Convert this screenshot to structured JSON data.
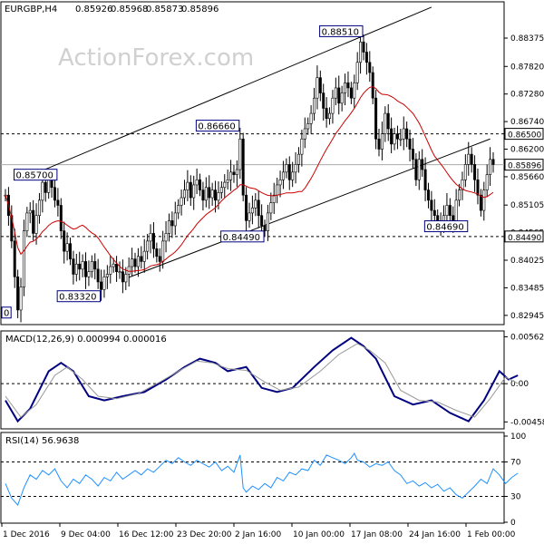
{
  "header": {
    "symbol": "EURGBP,H4",
    "open": "0.85926",
    "high": "0.85968",
    "low": "0.85873",
    "close": "0.85896"
  },
  "watermark": "ActionForex.com",
  "chart_data": [
    {
      "type": "candlestick",
      "title": "EURGBP,H4  0.85926 0.85968 0.85873 0.85896",
      "ylim": [
        0.828,
        0.8905
      ],
      "y_ticks": [
        "0.88375",
        "0.87820",
        "0.87280",
        "0.86740",
        "0.86200",
        "0.85660",
        "0.85105",
        "0.84565",
        "0.84025",
        "0.83485",
        "0.82945"
      ],
      "y_tick_values": [
        0.88375,
        0.8782,
        0.8728,
        0.8674,
        0.862,
        0.8566,
        0.85105,
        0.84565,
        0.84025,
        0.83485,
        0.82945
      ],
      "price_labels": [
        {
          "text": "0.86500",
          "value": 0.865
        },
        {
          "text": "0.85896",
          "value": 0.85896
        },
        {
          "text": "0.84490",
          "value": 0.8449
        }
      ],
      "horizontal_levels": [
        0.865,
        0.8449
      ],
      "current_price": 0.85896,
      "annotations": [
        {
          "text": "0.88510",
          "bar": 116,
          "value": 0.8851
        },
        {
          "text": "0.86660",
          "bar": 76,
          "value": 0.8666
        },
        {
          "text": "0.85700",
          "bar": 17,
          "value": 0.857
        },
        {
          "text": "0.84490",
          "bar": 84,
          "value": 0.8449
        },
        {
          "text": "0.84690",
          "bar": 150,
          "value": 0.8469
        },
        {
          "text": "0.83320",
          "bar": 31,
          "value": 0.8332
        },
        {
          "text": "0",
          "bar": 0,
          "value": 0.83
        }
      ],
      "channel": {
        "upper": [
          {
            "bar": 8,
            "value": 0.8568
          },
          {
            "bar": 138,
            "value": 0.8898
          }
        ],
        "lower": [
          {
            "bar": 40,
            "value": 0.8369
          },
          {
            "bar": 157,
            "value": 0.864
          }
        ]
      },
      "series": [
        {
          "ma_color": "#cc0000",
          "close": [
            0.853,
            0.849,
            0.844,
            0.837,
            0.8305,
            0.835,
            0.846,
            0.8495,
            0.85,
            0.8455,
            0.849,
            0.852,
            0.8555,
            0.8535,
            0.8565,
            0.8545,
            0.852,
            0.851,
            0.846,
            0.842,
            0.8435,
            0.8405,
            0.8375,
            0.8395,
            0.8385,
            0.84,
            0.837,
            0.838,
            0.84,
            0.8385,
            0.836,
            0.8345,
            0.837,
            0.8375,
            0.839,
            0.8395,
            0.838,
            0.838,
            0.836,
            0.8375,
            0.839,
            0.8405,
            0.839,
            0.841,
            0.84,
            0.842,
            0.844,
            0.8455,
            0.8425,
            0.841,
            0.84,
            0.844,
            0.8455,
            0.848,
            0.847,
            0.8495,
            0.851,
            0.8525,
            0.854,
            0.8555,
            0.8525,
            0.855,
            0.856,
            0.854,
            0.852,
            0.8545,
            0.8525,
            0.854,
            0.852,
            0.8535,
            0.8545,
            0.8555,
            0.856,
            0.8575,
            0.857,
            0.858,
            0.864,
            0.853,
            0.848,
            0.8495,
            0.8505,
            0.852,
            0.849,
            0.847,
            0.846,
            0.8495,
            0.8515,
            0.853,
            0.855,
            0.856,
            0.8575,
            0.859,
            0.856,
            0.8575,
            0.859,
            0.861,
            0.864,
            0.866,
            0.867,
            0.869,
            0.872,
            0.876,
            0.873,
            0.87,
            0.868,
            0.869,
            0.872,
            0.874,
            0.871,
            0.873,
            0.875,
            0.874,
            0.872,
            0.875,
            0.879,
            0.883,
            0.881,
            0.879,
            0.877,
            0.872,
            0.864,
            0.862,
            0.865,
            0.869,
            0.866,
            0.863,
            0.865,
            0.864,
            0.864,
            0.866,
            0.864,
            0.862,
            0.86,
            0.856,
            0.86,
            0.858,
            0.854,
            0.852,
            0.85,
            0.849,
            0.848,
            0.847,
            0.849,
            0.851,
            0.849,
            0.848,
            0.852,
            0.854,
            0.856,
            0.859,
            0.861,
            0.859,
            0.856,
            0.853,
            0.85,
            0.854,
            0.857,
            0.86,
            0.859
          ]
        }
      ],
      "x_labels": [
        "1 Dec 2016",
        "9 Dec 04:00",
        "16 Dec 12:00",
        "23 Dec 20:00",
        "2 Jan 16:00",
        "10 Jan 00:00",
        "17 Jan 08:00",
        "24 Jan 16:00",
        "1 Feb 00:00"
      ]
    },
    {
      "type": "line",
      "title": "MACD(12,26,9) 0.000994 0.000016",
      "ylim": [
        -0.0052,
        0.006
      ],
      "y_ticks": [
        "0.005627",
        "0.00",
        "-0.004586"
      ],
      "y_tick_values": [
        0.005627,
        0.0,
        -0.004586
      ],
      "series": [
        {
          "name": "MACD",
          "color": "#000080",
          "points": [
            [
              0,
              -0.002
            ],
            [
              4,
              -0.0045
            ],
            [
              8,
              -0.003
            ],
            [
              14,
              0.0015
            ],
            [
              18,
              0.0025
            ],
            [
              22,
              0.0015
            ],
            [
              27,
              -0.0015
            ],
            [
              32,
              -0.002
            ],
            [
              38,
              -0.0015
            ],
            [
              45,
              -0.001
            ],
            [
              52,
              0.0005
            ],
            [
              58,
              0.002
            ],
            [
              63,
              0.003
            ],
            [
              68,
              0.0025
            ],
            [
              72,
              0.0015
            ],
            [
              78,
              0.002
            ],
            [
              83,
              -0.0005
            ],
            [
              88,
              -0.001
            ],
            [
              93,
              -0.0005
            ],
            [
              100,
              0.002
            ],
            [
              106,
              0.004
            ],
            [
              112,
              0.0055
            ],
            [
              116,
              0.0045
            ],
            [
              120,
              0.003
            ],
            [
              126,
              -0.0015
            ],
            [
              132,
              -0.0025
            ],
            [
              138,
              -0.002
            ],
            [
              144,
              -0.0035
            ],
            [
              150,
              -0.0045
            ],
            [
              155,
              -0.002
            ],
            [
              160,
              0.0015
            ],
            [
              163,
              0.0005
            ],
            [
              166,
              0.001
            ]
          ]
        },
        {
          "name": "Signal",
          "color": "#999999",
          "points": [
            [
              0,
              -0.0015
            ],
            [
              5,
              -0.004
            ],
            [
              10,
              -0.0025
            ],
            [
              16,
              0.001
            ],
            [
              20,
              0.002
            ],
            [
              25,
              0.0005
            ],
            [
              30,
              -0.0015
            ],
            [
              36,
              -0.0018
            ],
            [
              43,
              -0.0012
            ],
            [
              50,
              0.0002
            ],
            [
              56,
              0.0015
            ],
            [
              62,
              0.0027
            ],
            [
              67,
              0.0025
            ],
            [
              72,
              0.0018
            ],
            [
              78,
              0.0016
            ],
            [
              84,
              0.0002
            ],
            [
              89,
              -0.0008
            ],
            [
              95,
              -0.0004
            ],
            [
              102,
              0.0015
            ],
            [
              108,
              0.0035
            ],
            [
              114,
              0.0048
            ],
            [
              118,
              0.004
            ],
            [
              123,
              0.0025
            ],
            [
              128,
              -0.0008
            ],
            [
              134,
              -0.002
            ],
            [
              140,
              -0.0022
            ],
            [
              146,
              -0.0032
            ],
            [
              152,
              -0.004
            ],
            [
              157,
              -0.0018
            ],
            [
              162,
              0.0008
            ],
            [
              166,
              1.6e-05
            ]
          ]
        }
      ]
    },
    {
      "type": "line",
      "title": "RSI(14) 56.9638",
      "ylim": [
        0,
        100
      ],
      "y_ticks": [
        "100",
        "70",
        "30",
        "0"
      ],
      "y_tick_values": [
        100,
        70,
        30,
        0
      ],
      "series": [
        {
          "name": "RSI",
          "color": "#1e90ff",
          "points": [
            [
              0,
              45
            ],
            [
              2,
              28
            ],
            [
              4,
              20
            ],
            [
              6,
              40
            ],
            [
              8,
              55
            ],
            [
              10,
              50
            ],
            [
              12,
              60
            ],
            [
              14,
              55
            ],
            [
              16,
              62
            ],
            [
              18,
              48
            ],
            [
              20,
              40
            ],
            [
              22,
              50
            ],
            [
              24,
              45
            ],
            [
              26,
              55
            ],
            [
              28,
              50
            ],
            [
              30,
              42
            ],
            [
              32,
              52
            ],
            [
              34,
              48
            ],
            [
              36,
              58
            ],
            [
              38,
              50
            ],
            [
              40,
              55
            ],
            [
              42,
              60
            ],
            [
              44,
              55
            ],
            [
              46,
              62
            ],
            [
              48,
              58
            ],
            [
              50,
              65
            ],
            [
              52,
              72
            ],
            [
              54,
              68
            ],
            [
              56,
              75
            ],
            [
              58,
              70
            ],
            [
              60,
              66
            ],
            [
              62,
              72
            ],
            [
              64,
              68
            ],
            [
              66,
              64
            ],
            [
              68,
              70
            ],
            [
              70,
              60
            ],
            [
              72,
              65
            ],
            [
              74,
              58
            ],
            [
              76,
              78
            ],
            [
              77,
              40
            ],
            [
              78,
              35
            ],
            [
              80,
              42
            ],
            [
              82,
              38
            ],
            [
              84,
              45
            ],
            [
              86,
              40
            ],
            [
              88,
              52
            ],
            [
              90,
              48
            ],
            [
              92,
              58
            ],
            [
              94,
              55
            ],
            [
              96,
              62
            ],
            [
              98,
              60
            ],
            [
              100,
              72
            ],
            [
              102,
              66
            ],
            [
              104,
              78
            ],
            [
              106,
              75
            ],
            [
              108,
              72
            ],
            [
              110,
              68
            ],
            [
              112,
              75
            ],
            [
              113,
              80
            ],
            [
              114,
              72
            ],
            [
              116,
              70
            ],
            [
              118,
              64
            ],
            [
              120,
              68
            ],
            [
              122,
              66
            ],
            [
              124,
              70
            ],
            [
              126,
              60
            ],
            [
              128,
              55
            ],
            [
              130,
              45
            ],
            [
              132,
              48
            ],
            [
              134,
              42
            ],
            [
              136,
              46
            ],
            [
              138,
              40
            ],
            [
              140,
              44
            ],
            [
              142,
              36
            ],
            [
              144,
              40
            ],
            [
              146,
              32
            ],
            [
              148,
              28
            ],
            [
              150,
              35
            ],
            [
              152,
              42
            ],
            [
              154,
              50
            ],
            [
              156,
              45
            ],
            [
              158,
              62
            ],
            [
              160,
              55
            ],
            [
              162,
              45
            ],
            [
              164,
              52
            ],
            [
              166,
              57
            ]
          ]
        }
      ]
    }
  ]
}
